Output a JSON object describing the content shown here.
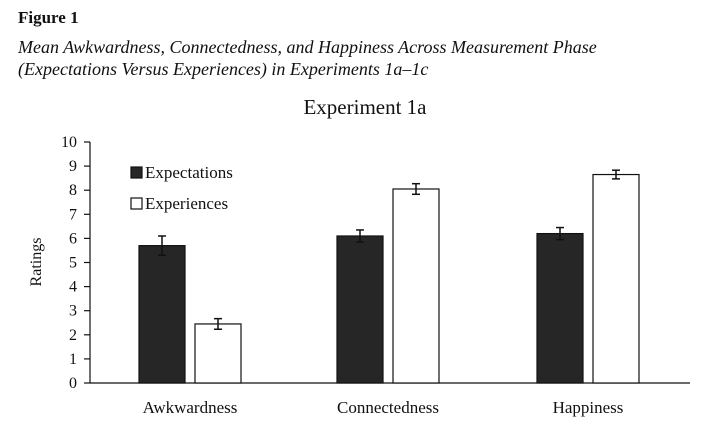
{
  "figure": {
    "label": "Figure 1",
    "caption_line1": "Mean Awkwardness, Connectedness, and Happiness Across Measurement Phase",
    "caption_line2": "(Expectations Versus Experiences) in Experiments 1a–1c"
  },
  "chart_data": {
    "type": "bar",
    "title": "Experiment 1a",
    "xlabel": "",
    "ylabel": "Ratings",
    "ylim": [
      0,
      10
    ],
    "yticks": [
      0,
      1,
      2,
      3,
      4,
      5,
      6,
      7,
      8,
      9,
      10
    ],
    "categories": [
      "Awkwardness",
      "Connectedness",
      "Happiness"
    ],
    "series": [
      {
        "name": "Expectations",
        "values": [
          5.7,
          6.1,
          6.2
        ],
        "error": [
          0.4,
          0.25,
          0.25
        ],
        "color": "#262626"
      },
      {
        "name": "Experiences",
        "values": [
          2.45,
          8.05,
          8.65
        ],
        "error": [
          0.22,
          0.22,
          0.18
        ],
        "color": "#ffffff"
      }
    ],
    "legend_position": "top-left",
    "grid": false
  }
}
